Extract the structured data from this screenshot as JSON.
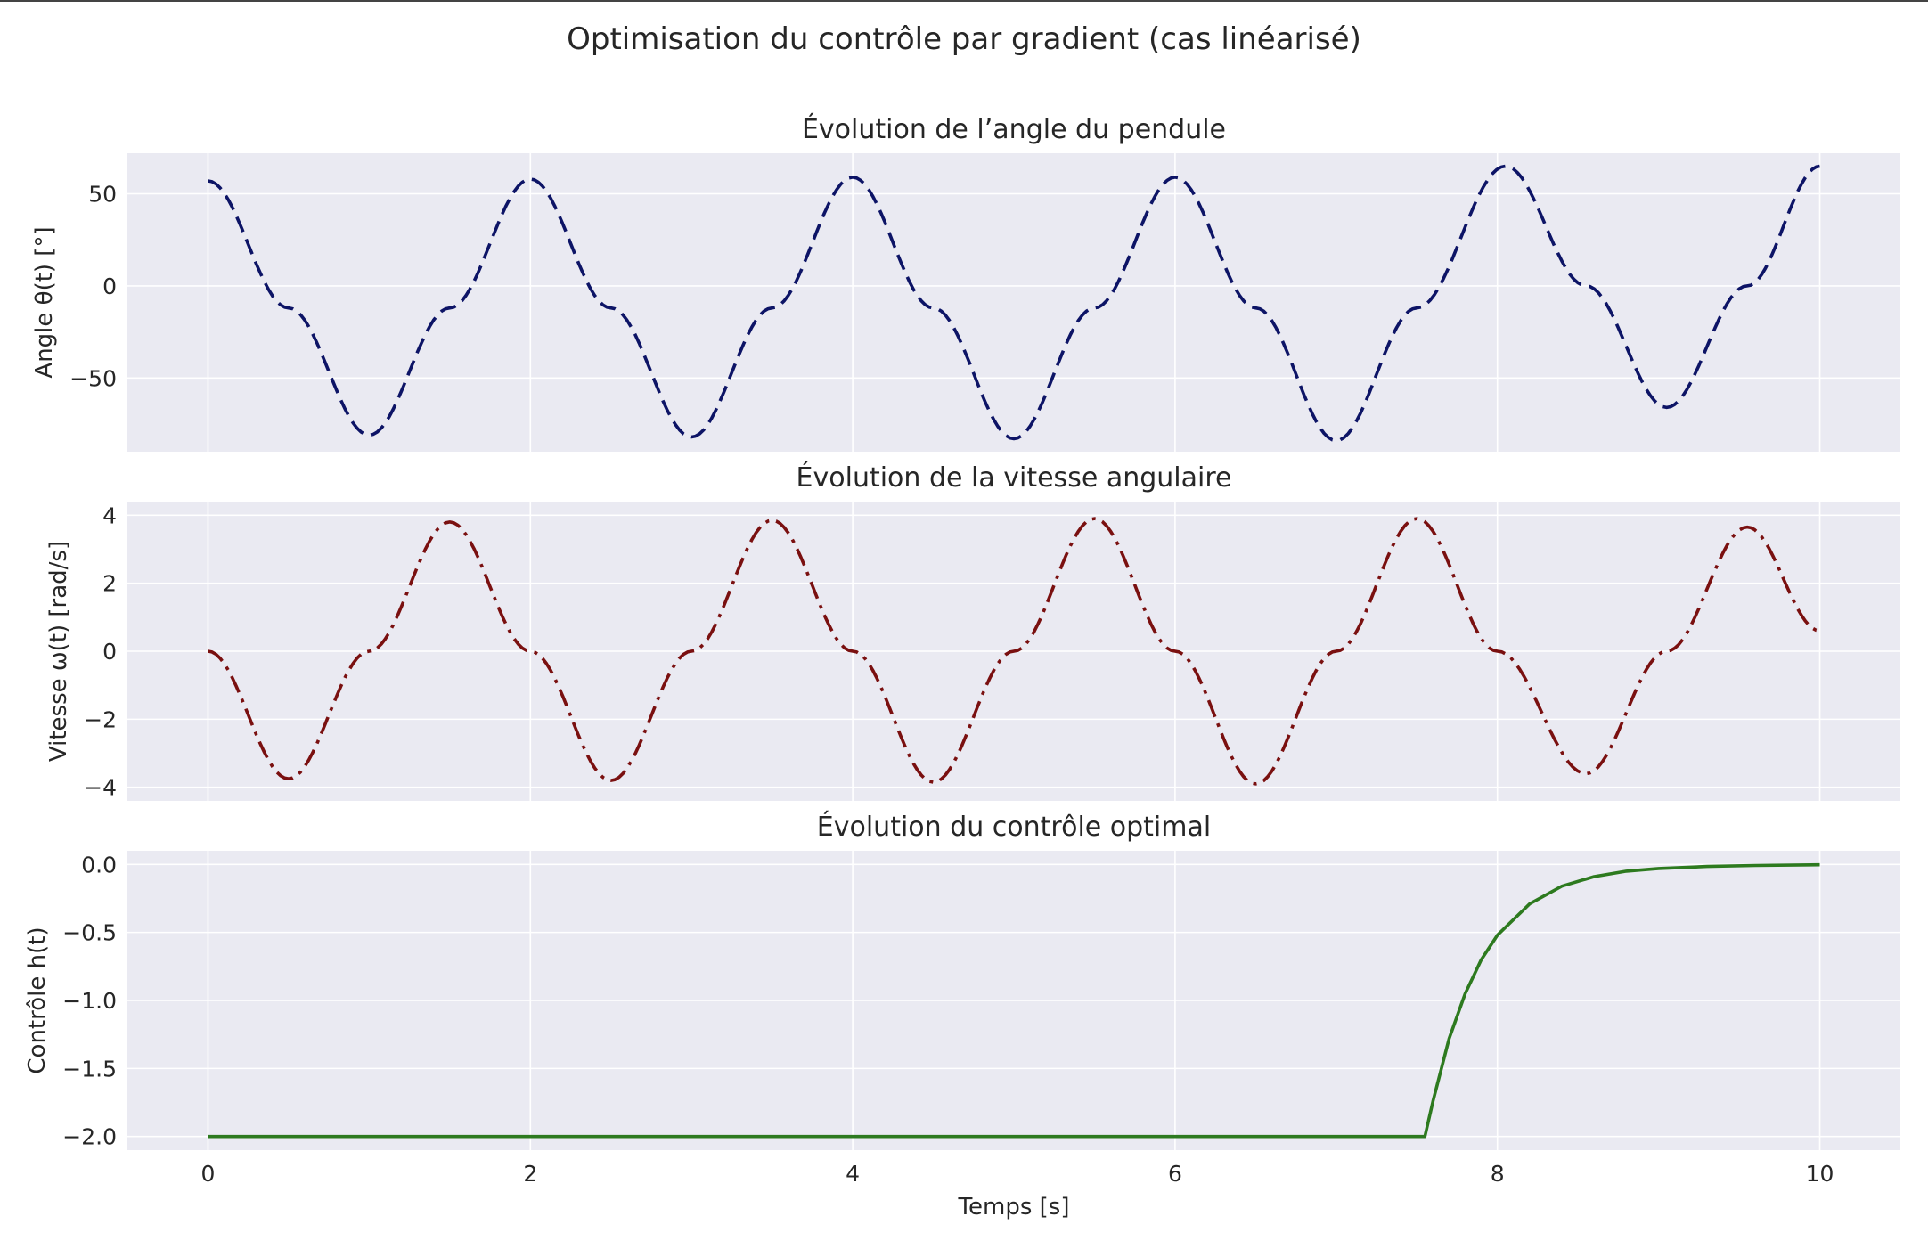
{
  "figure": {
    "title": "Optimisation du contrôle par gradient (cas linéarisé)"
  },
  "chart_data": [
    {
      "type": "line",
      "title": "Évolution de l’angle du pendule",
      "xlabel": "",
      "ylabel": "Angle θ(t) [°]",
      "xlim": [
        -0.5,
        10.5
      ],
      "ylim": [
        -90,
        72
      ],
      "xticks": [
        0,
        2,
        4,
        6,
        8,
        10
      ],
      "yticks": [
        50,
        0,
        -50
      ],
      "ytick_labels": [
        "50",
        "0",
        "−50"
      ],
      "show_xtick_labels": false,
      "grid": true,
      "series": [
        {
          "color": "#0d1466",
          "line_style": "dashed",
          "x": [
            0,
            0.5,
            1.0,
            1.5,
            2.0,
            2.5,
            3.0,
            3.5,
            4.0,
            4.5,
            5.0,
            5.5,
            6.0,
            6.5,
            7.0,
            7.5,
            8.05,
            8.55,
            9.05,
            9.55,
            10.0
          ],
          "y": [
            57,
            -12,
            -81,
            -12,
            58,
            -12,
            -82,
            -12,
            59,
            -12,
            -83,
            -12,
            59,
            -12,
            -84,
            -12,
            65,
            0,
            -66,
            0,
            65
          ]
        }
      ]
    },
    {
      "type": "line",
      "title": "Évolution de la vitesse angulaire",
      "xlabel": "",
      "ylabel": "Vitesse ω(t) [rad/s]",
      "xlim": [
        -0.5,
        10.5
      ],
      "ylim": [
        -4.4,
        4.4
      ],
      "xticks": [
        0,
        2,
        4,
        6,
        8,
        10
      ],
      "yticks": [
        4,
        2,
        0,
        -2,
        -4
      ],
      "ytick_labels": [
        "4",
        "2",
        "0",
        "−2",
        "−4"
      ],
      "show_xtick_labels": false,
      "grid": true,
      "series": [
        {
          "color": "#7a1010",
          "line_style": "dashdot",
          "x": [
            0,
            0.5,
            1.0,
            1.5,
            2.0,
            2.5,
            3.0,
            3.5,
            4.0,
            4.5,
            5.0,
            5.5,
            6.0,
            6.5,
            7.0,
            7.5,
            8.0,
            8.55,
            9.05,
            9.55,
            10.0
          ],
          "y": [
            0,
            -3.75,
            0,
            3.8,
            0,
            -3.8,
            0,
            3.85,
            0,
            -3.85,
            0,
            3.9,
            0,
            -3.9,
            0,
            3.9,
            0,
            -3.6,
            0,
            3.65,
            0.6
          ]
        }
      ]
    },
    {
      "type": "line",
      "title": "Évolution du contrôle optimal",
      "xlabel": "Temps [s]",
      "ylabel": "Contrôle h(t)",
      "xlim": [
        -0.5,
        10.5
      ],
      "ylim": [
        -2.1,
        0.1
      ],
      "xticks": [
        0,
        2,
        4,
        6,
        8,
        10
      ],
      "xtick_labels": [
        "0",
        "2",
        "4",
        "6",
        "8",
        "10"
      ],
      "yticks": [
        0.0,
        -0.5,
        -1.0,
        -1.5,
        -2.0
      ],
      "ytick_labels": [
        "0.0",
        "−0.5",
        "−1.0",
        "−1.5",
        "−2.0"
      ],
      "show_xtick_labels": true,
      "grid": true,
      "series": [
        {
          "color": "#2d7a1f",
          "line_style": "solid",
          "x": [
            0,
            1,
            2,
            3,
            4,
            5,
            6,
            7,
            7.55,
            7.6,
            7.7,
            7.8,
            7.9,
            8.0,
            8.2,
            8.4,
            8.6,
            8.8,
            9.0,
            9.3,
            9.6,
            10.0
          ],
          "y": [
            -2.0,
            -2.0,
            -2.0,
            -2.0,
            -2.0,
            -2.0,
            -2.0,
            -2.0,
            -2.0,
            -1.74,
            -1.28,
            -0.95,
            -0.7,
            -0.52,
            -0.29,
            -0.16,
            -0.09,
            -0.05,
            -0.03,
            -0.015,
            -0.008,
            -0.003
          ]
        }
      ]
    }
  ]
}
